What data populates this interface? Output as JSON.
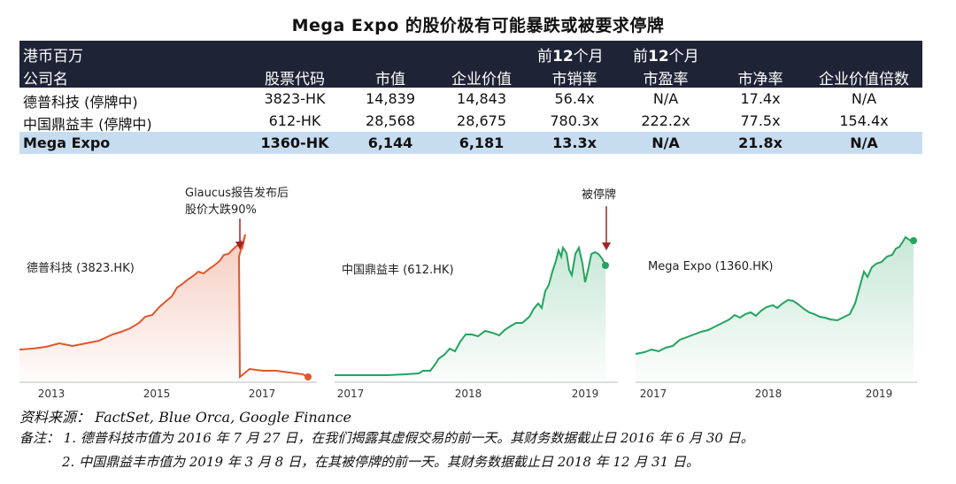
{
  "title": "Mega Expo 的股价极有可能暴跌或被要求停牌",
  "table": {
    "header_row1": {
      "unit": "港币百万",
      "ps_prefix": "前",
      "ps_num": "12",
      "ps_suffix": "个月",
      "pe_prefix": "前",
      "pe_num": "12",
      "pe_suffix": "个月"
    },
    "header_row2": [
      "公司名",
      "股票代码",
      "市值",
      "企业价值",
      "市销率",
      "市盈率",
      "市净率",
      "企业价值倍数"
    ],
    "rows": [
      [
        "德普科技 (停牌中)",
        "3823-HK",
        "14,839",
        "14,843",
        "56.4x",
        "N/A",
        "17.4x",
        "N/A"
      ],
      [
        "中国鼎益丰 (停牌中)",
        "612-HK",
        "28,568",
        "28,675",
        "780.3x",
        "222.2x",
        "77.5x",
        "154.4x"
      ],
      [
        "Mega Expo",
        "1360-HK",
        "6,144",
        "6,181",
        "13.3x",
        "N/A",
        "21.8x",
        "N/A"
      ]
    ]
  },
  "charts": [
    {
      "label": "德普科技 (3823.HK)",
      "annotation_line1": "Glaucus报告发布后",
      "annotation_line2": "股价大跌90%",
      "color": "#e0562b",
      "x_ticks": [
        "2013",
        "2015",
        "2017"
      ]
    },
    {
      "label": "中国鼎益丰 (612.HK)",
      "annotation_line1": "被停牌",
      "color": "#23a35f",
      "x_ticks": [
        "2017",
        "2018",
        "2019"
      ]
    },
    {
      "label": "Mega Expo (1360.HK)",
      "color": "#23a35f",
      "x_ticks": [
        "2017",
        "2018",
        "2019"
      ]
    }
  ],
  "notes": {
    "source": "资料来源： FactSet, Blue Orca, Google Finance",
    "note1": "备注： 1. 德普科技市值为 2016 年 7 月 27 日，在我们揭露其虚假交易的前一天。其财务数据截止日 2016 年 6 月 30 日。",
    "note2": "2. 中国鼎益丰市值为 2019 年 3 月 8 日，在其被停牌的前一天。其财务数据截止日 2018 年 12 月 31 日。"
  }
}
